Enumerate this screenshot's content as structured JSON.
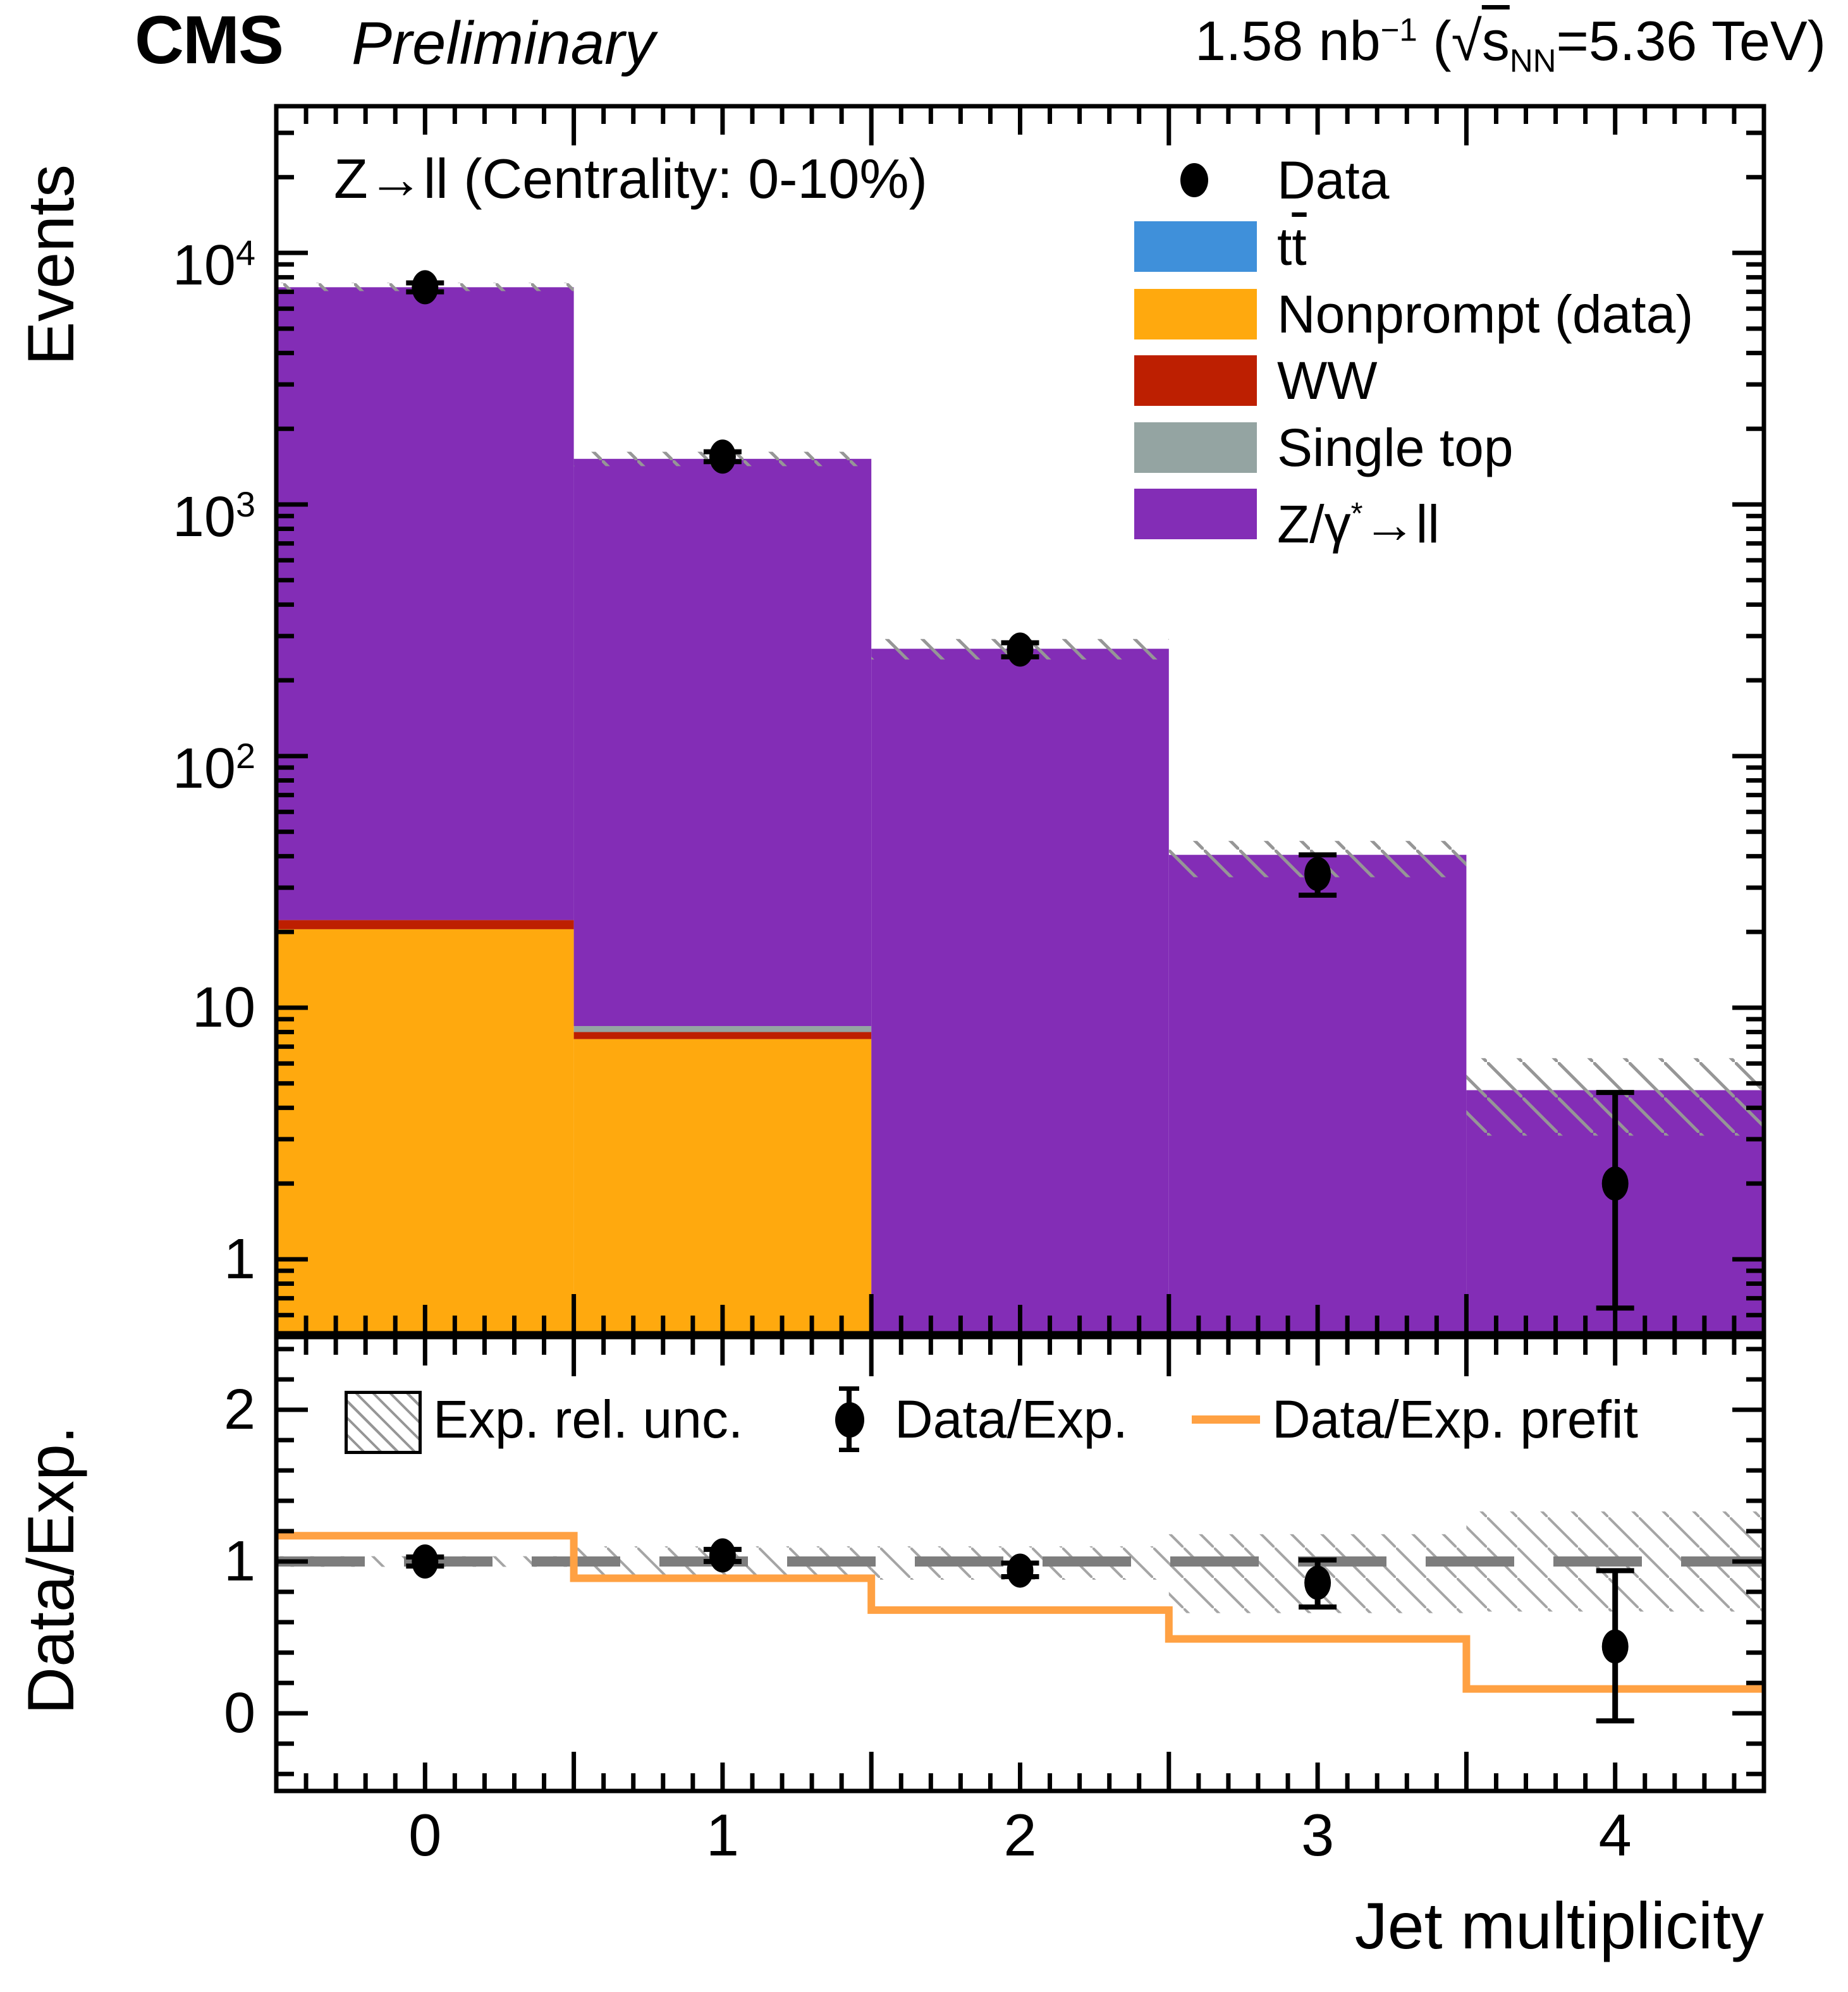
{
  "header": {
    "experiment": "CMS",
    "status": "Preliminary",
    "lumi": {
      "lumi_value": "1.58 nb",
      "lumi_exp": "−1",
      "open_paren": " (",
      "sqrt_sign": "√",
      "sqrt_arg": "s",
      "sqrt_sub": "NN",
      "energy": "=5.36 TeV)"
    }
  },
  "plot_label": "Z→ll (Centrality: 0-10%)",
  "axes": {
    "main_y_title": "Events",
    "ratio_y_title": "Data/Exp.",
    "x_title": "Jet multiplicity",
    "main_y_ticks": [
      {
        "value": 10000,
        "base": "10",
        "exp": "4"
      },
      {
        "value": 1000,
        "base": "10",
        "exp": "3"
      },
      {
        "value": 100,
        "base": "10",
        "exp": "2"
      },
      {
        "value": 10,
        "base": "10",
        "exp": ""
      },
      {
        "value": 1,
        "base": "1",
        "exp": ""
      }
    ],
    "ratio_y_ticks": [
      {
        "value": 2,
        "label": "2"
      },
      {
        "value": 1,
        "label": "1"
      },
      {
        "value": 0,
        "label": "0"
      }
    ],
    "x_ticks": [
      {
        "value": 0,
        "label": "0"
      },
      {
        "value": 1,
        "label": "1"
      },
      {
        "value": 2,
        "label": "2"
      },
      {
        "value": 3,
        "label": "3"
      },
      {
        "value": 4,
        "label": "4"
      }
    ]
  },
  "legend": {
    "items": [
      {
        "id": "data",
        "marker": "black-point",
        "segments": [
          {
            "t": "Data"
          }
        ]
      },
      {
        "id": "ttbar",
        "swatch": "#3f90da",
        "segments": [
          {
            "t": "t"
          },
          {
            "t": "t",
            "style": "overline"
          }
        ]
      },
      {
        "id": "nonprompt",
        "swatch": "#ffa90e",
        "segments": [
          {
            "t": "Nonprompt (data)"
          }
        ]
      },
      {
        "id": "ww",
        "swatch": "#bd1f01",
        "segments": [
          {
            "t": "WW"
          }
        ]
      },
      {
        "id": "singletop",
        "swatch": "#94a4a2",
        "segments": [
          {
            "t": "Single top"
          }
        ]
      },
      {
        "id": "zll",
        "swatch": "#832db6",
        "segments": [
          {
            "t": "Z/γ"
          },
          {
            "t": "*",
            "style": "sup"
          },
          {
            "t": "→ll"
          }
        ]
      }
    ]
  },
  "ratio_legend": {
    "items": [
      {
        "id": "unc-band",
        "marker": "hatch-box",
        "segments": [
          {
            "t": "Exp. rel. unc."
          }
        ]
      },
      {
        "id": "ratio-data",
        "marker": "point-errorbar",
        "segments": [
          {
            "t": "Data/Exp."
          }
        ]
      },
      {
        "id": "prefit",
        "marker": "orange-line",
        "segments": [
          {
            "t": "Data/Exp. prefit"
          }
        ]
      }
    ]
  },
  "colors": {
    "ttbar": "#3f90da",
    "nonprompt": "#ffa90e",
    "ww": "#bd1f01",
    "single_top": "#94a4a2",
    "zll": "#832db6",
    "prefit_line": "#ffa143",
    "reference_line": "#7d7d7d",
    "hatch_main": "#969696",
    "hatch_ratio": "#a5a5a5",
    "frame": "#000000"
  },
  "chart_data": {
    "type": "bar",
    "variant": "stacked histogram (log y) with data points and ratio panel",
    "title": "Z→ll (Centrality: 0-10%)",
    "categories": [
      0,
      1,
      2,
      3,
      4
    ],
    "xlabel": "Jet multiplicity",
    "xlim": [
      -0.5,
      4.5
    ],
    "main_panel": {
      "ylabel": "Events",
      "yscale": "log",
      "ylim": [
        0.508,
        38280
      ],
      "grid": false,
      "legend_position": "top-right",
      "series": [
        {
          "name": "Nonprompt (data)",
          "color": "#ffa90e",
          "values": [
            20.5,
            7.5,
            0,
            0,
            0
          ]
        },
        {
          "name": "WW",
          "color": "#bd1f01",
          "values": [
            1.8,
            0.5,
            0,
            0,
            0
          ]
        },
        {
          "name": "Single top",
          "color": "#94a4a2",
          "values": [
            0,
            0.45,
            0,
            0,
            0
          ]
        },
        {
          "name": "tt̄",
          "color": "#3f90da",
          "values": [
            0,
            0,
            0,
            0,
            0
          ]
        },
        {
          "name": "Z/γ*→ll",
          "color": "#832db6",
          "values": [
            7280,
            1510,
            267,
            40.5,
            4.7
          ]
        }
      ],
      "stack_totals": [
        7300,
        1519,
        267,
        40.5,
        4.7
      ],
      "uncertainty_band": {
        "lo": [
          7050,
          1420,
          242,
          33,
          3.1
        ],
        "hi": [
          7600,
          1620,
          292,
          46,
          6.3
        ]
      },
      "data_points": {
        "y": [
          7300,
          1550,
          265,
          34,
          2
        ],
        "err_lo": [
          7000,
          1480,
          248,
          28,
          0.64
        ],
        "err_hi": [
          7600,
          1620,
          282,
          40.5,
          4.6
        ]
      }
    },
    "ratio_panel": {
      "ylabel": "Data/Exp.",
      "yscale": "linear",
      "ylim": [
        -0.512,
        2.479
      ],
      "yticks": [
        0,
        1,
        2
      ],
      "reference_line": 1,
      "uncertainty_band": {
        "lo": [
          0.965,
          0.88,
          0.88,
          0.66,
          0.67
        ],
        "hi": [
          1.035,
          1.1,
          1.1,
          1.18,
          1.33
        ]
      },
      "prefit_steps": [
        1.17,
        0.89,
        0.68,
        0.49,
        0.16
      ],
      "data_points": {
        "y": [
          1.0,
          1.04,
          0.94,
          0.86,
          0.44
        ],
        "err_lo": [
          0.97,
          1.0,
          0.9,
          0.7,
          -0.05
        ],
        "err_hi": [
          1.03,
          1.08,
          0.99,
          1.01,
          0.94
        ]
      }
    }
  }
}
